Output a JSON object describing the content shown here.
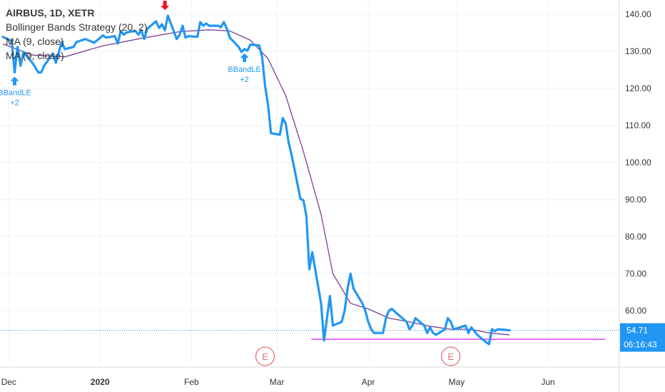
{
  "legend": {
    "title": "AIRBUS, 1D, XETR",
    "line1": "Bollinger Bands Strategy (20, 2)",
    "line2": "MA (9, close)",
    "line3": "MA (9, close)"
  },
  "chart_data": {
    "type": "line",
    "symbol": "AIRBUS",
    "interval": "1D",
    "exchange": "XETR",
    "ylim": [
      48,
      143
    ],
    "y_ticks": [
      60,
      70,
      80,
      90,
      100,
      110,
      120,
      130,
      140
    ],
    "y_tick_labels": [
      "60.00",
      "70.00",
      "80.00",
      "90.00",
      "100.00",
      "110.00",
      "120.00",
      "130.00",
      "140.00"
    ],
    "x_ticks": [
      {
        "label": "Dec",
        "date": "2019-12-01",
        "bold": false
      },
      {
        "label": "2020",
        "date": "2020-01-01",
        "bold": true
      },
      {
        "label": "Feb",
        "date": "2020-02-01",
        "bold": false
      },
      {
        "label": "Mar",
        "date": "2020-03-01",
        "bold": false
      },
      {
        "label": "Apr",
        "date": "2020-04-01",
        "bold": false
      },
      {
        "label": "May",
        "date": "2020-05-01",
        "bold": false
      },
      {
        "label": "Jun",
        "date": "2020-06-01",
        "bold": false
      }
    ],
    "price_series": {
      "color": "#2196f3",
      "points": [
        [
          "2019-11-29",
          133.9
        ],
        [
          "2019-12-02",
          132.8
        ],
        [
          "2019-12-03",
          124.3
        ],
        [
          "2019-12-04",
          131.2
        ],
        [
          "2019-12-05",
          126.1
        ],
        [
          "2019-12-06",
          129.8
        ],
        [
          "2019-12-09",
          126.9
        ],
        [
          "2019-12-10",
          125.7
        ],
        [
          "2019-12-11",
          124.3
        ],
        [
          "2019-12-12",
          124.3
        ],
        [
          "2019-12-13",
          126.1
        ],
        [
          "2019-12-16",
          129.4
        ],
        [
          "2019-12-17",
          126.9
        ],
        [
          "2019-12-18",
          129.8
        ],
        [
          "2019-12-19",
          132.5
        ],
        [
          "2019-12-20",
          130.6
        ],
        [
          "2019-12-23",
          131.2
        ],
        [
          "2019-12-24",
          132.5
        ],
        [
          "2019-12-27",
          133.3
        ],
        [
          "2019-12-30",
          132.3
        ],
        [
          "2020-01-02",
          134.3
        ],
        [
          "2020-01-03",
          133.7
        ],
        [
          "2020-01-06",
          134.1
        ],
        [
          "2020-01-07",
          132.1
        ],
        [
          "2020-01-08",
          135.5
        ],
        [
          "2020-01-09",
          134.5
        ],
        [
          "2020-01-10",
          135.1
        ],
        [
          "2020-01-13",
          135.5
        ],
        [
          "2020-01-14",
          134.5
        ],
        [
          "2020-01-15",
          135.7
        ],
        [
          "2020-01-16",
          133.3
        ],
        [
          "2020-01-17",
          136.1
        ],
        [
          "2020-01-20",
          138.1
        ],
        [
          "2020-01-21",
          136.3
        ],
        [
          "2020-01-22",
          137.3
        ],
        [
          "2020-01-23",
          135.7
        ],
        [
          "2020-01-24",
          139.6
        ],
        [
          "2020-01-27",
          133.3
        ],
        [
          "2020-01-28",
          134.5
        ],
        [
          "2020-01-29",
          136.9
        ],
        [
          "2020-01-30",
          133.7
        ],
        [
          "2020-01-31",
          134.1
        ],
        [
          "2020-02-03",
          133.9
        ],
        [
          "2020-02-04",
          137.9
        ],
        [
          "2020-02-05",
          136.9
        ],
        [
          "2020-02-06",
          137.5
        ],
        [
          "2020-02-07",
          136.9
        ],
        [
          "2020-02-10",
          136.9
        ],
        [
          "2020-02-11",
          136.5
        ],
        [
          "2020-02-12",
          137.9
        ],
        [
          "2020-02-13",
          136.1
        ],
        [
          "2020-02-14",
          133.7
        ],
        [
          "2020-02-17",
          131.2
        ],
        [
          "2020-02-18",
          129.8
        ],
        [
          "2020-02-19",
          130.6
        ],
        [
          "2020-02-20",
          130.2
        ],
        [
          "2020-02-21",
          131.8
        ],
        [
          "2020-02-24",
          131.6
        ],
        [
          "2020-02-25",
          128.4
        ],
        [
          "2020-02-26",
          120.7
        ],
        [
          "2020-02-27",
          115.5
        ],
        [
          "2020-02-28",
          107.9
        ],
        [
          "2020-03-02",
          107.5
        ],
        [
          "2020-03-03",
          112.0
        ],
        [
          "2020-03-04",
          110.4
        ],
        [
          "2020-03-05",
          105.3
        ],
        [
          "2020-03-06",
          102.0
        ],
        [
          "2020-03-09",
          90.2
        ],
        [
          "2020-03-10",
          89.8
        ],
        [
          "2020-03-11",
          85.6
        ],
        [
          "2020-03-12",
          71.2
        ],
        [
          "2020-03-13",
          75.8
        ],
        [
          "2020-03-16",
          62.0
        ],
        [
          "2020-03-17",
          52.0
        ],
        [
          "2020-03-18",
          58.0
        ],
        [
          "2020-03-19",
          64.0
        ],
        [
          "2020-03-20",
          56.0
        ],
        [
          "2020-03-23",
          57.0
        ],
        [
          "2020-03-24",
          60.0
        ],
        [
          "2020-03-25",
          66.0
        ],
        [
          "2020-03-26",
          70.0
        ],
        [
          "2020-03-27",
          66.0
        ],
        [
          "2020-03-30",
          62.0
        ],
        [
          "2020-03-31",
          60.0
        ],
        [
          "2020-04-01",
          57.0
        ],
        [
          "2020-04-02",
          55.0
        ],
        [
          "2020-04-03",
          54.0
        ],
        [
          "2020-04-06",
          54.0
        ],
        [
          "2020-04-07",
          58.0
        ],
        [
          "2020-04-08",
          60.0
        ],
        [
          "2020-04-09",
          60.5
        ],
        [
          "2020-04-14",
          57.0
        ],
        [
          "2020-04-15",
          55.0
        ],
        [
          "2020-04-16",
          56.0
        ],
        [
          "2020-04-17",
          58.0
        ],
        [
          "2020-04-20",
          56.0
        ],
        [
          "2020-04-21",
          54.0
        ],
        [
          "2020-04-22",
          55.5
        ],
        [
          "2020-04-23",
          54.0
        ],
        [
          "2020-04-24",
          53.5
        ],
        [
          "2020-04-27",
          55.0
        ],
        [
          "2020-04-28",
          58.0
        ],
        [
          "2020-04-29",
          57.0
        ],
        [
          "2020-04-30",
          55.0
        ],
        [
          "2020-05-04",
          56.0
        ],
        [
          "2020-05-05",
          54.0
        ],
        [
          "2020-05-06",
          55.5
        ],
        [
          "2020-05-07",
          54.5
        ],
        [
          "2020-05-08",
          53.5
        ],
        [
          "2020-05-11",
          51.5
        ],
        [
          "2020-05-12",
          51.0
        ],
        [
          "2020-05-13",
          55.0
        ],
        [
          "2020-05-14",
          54.5
        ],
        [
          "2020-05-15",
          55.0
        ],
        [
          "2020-05-18",
          54.8
        ],
        [
          "2020-05-19",
          54.7
        ]
      ]
    },
    "ma_series": {
      "color": "#7b3f91",
      "points": [
        [
          "2019-11-29",
          132.0
        ],
        [
          "2019-12-09",
          129.0
        ],
        [
          "2019-12-20",
          128.5
        ],
        [
          "2020-01-02",
          131.5
        ],
        [
          "2020-01-15",
          133.5
        ],
        [
          "2020-01-28",
          135.3
        ],
        [
          "2020-02-07",
          135.8
        ],
        [
          "2020-02-14",
          135.5
        ],
        [
          "2020-02-21",
          133.0
        ],
        [
          "2020-02-27",
          128.0
        ],
        [
          "2020-03-04",
          118.0
        ],
        [
          "2020-03-10",
          103.0
        ],
        [
          "2020-03-16",
          86.0
        ],
        [
          "2020-03-20",
          70.0
        ],
        [
          "2020-03-26",
          62.0
        ],
        [
          "2020-04-01",
          60.5
        ],
        [
          "2020-04-08",
          58.0
        ],
        [
          "2020-04-15",
          57.0
        ],
        [
          "2020-04-22",
          55.8
        ],
        [
          "2020-04-29",
          55.0
        ],
        [
          "2020-05-06",
          55.0
        ],
        [
          "2020-05-12",
          54.0
        ],
        [
          "2020-05-19",
          53.5
        ]
      ]
    },
    "support_line": {
      "value": 52.3,
      "color": "#e040fb",
      "from": "2020-03-17",
      "to": "2020-06-20"
    },
    "current_price": {
      "value": 54.71,
      "label": "54.71",
      "countdown": "06:16:43",
      "color": "#2196f3"
    },
    "signals": [
      {
        "type": "long",
        "name": "BBandLE",
        "qty": "+2",
        "date": "2019-12-03",
        "price": 124.3
      },
      {
        "type": "long",
        "name": "BBandLE",
        "qty": "+2",
        "date": "2020-02-19",
        "price": 130.6
      },
      {
        "type": "short",
        "name": "",
        "qty": "",
        "date": "2020-01-23",
        "price": 139.6
      }
    ],
    "events": [
      {
        "label": "E",
        "date": "2020-02-26"
      },
      {
        "label": "E",
        "date": "2020-04-29"
      }
    ]
  }
}
